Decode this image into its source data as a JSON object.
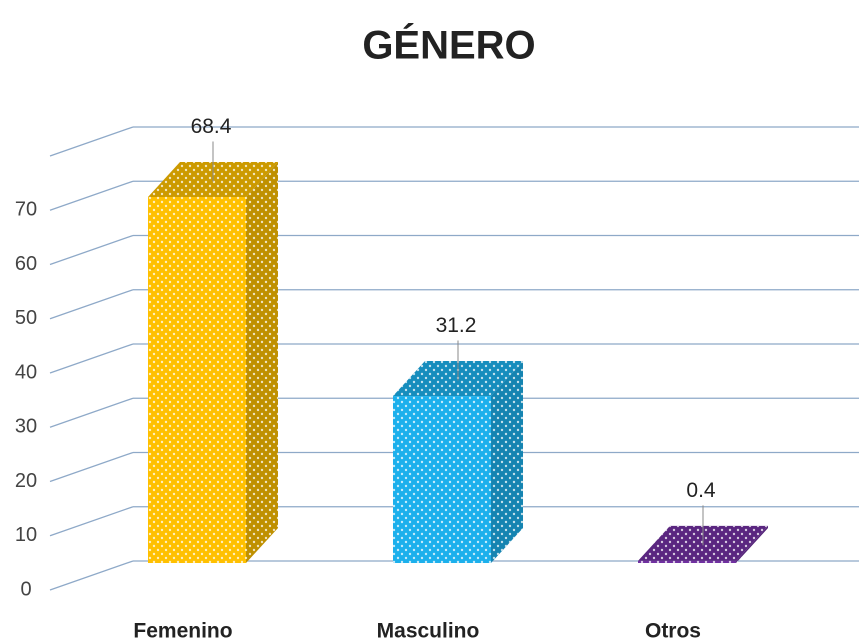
{
  "chart_data": {
    "type": "bar3d",
    "title": "GÉNERO",
    "categories": [
      "Femenino",
      "Masculino",
      "Otros"
    ],
    "values": [
      68.4,
      31.2,
      0.4
    ],
    "colors": [
      "#ffc000",
      "#1cb0ec",
      "#7030a0"
    ],
    "ylim": [
      0,
      80
    ],
    "yticks": [
      0,
      10,
      20,
      30,
      40,
      50,
      60,
      70
    ],
    "grid": true
  }
}
